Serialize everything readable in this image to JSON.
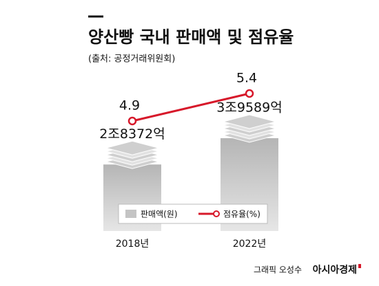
{
  "chart_data": {
    "type": "combo",
    "title": "양산빵 국내 판매액 및 점유율",
    "subtitle": "(출처: 공정거래위원회)",
    "categories": [
      "2018년",
      "2022년"
    ],
    "series": [
      {
        "name": "판매액(원)",
        "type": "bar",
        "color": "#c4c4c4",
        "values": [
          2837200000000,
          3958900000000
        ],
        "value_labels": [
          "2조8372억",
          "3조9589억"
        ]
      },
      {
        "name": "점유율(%)",
        "type": "line",
        "color": "#d7182a",
        "values": [
          4.9,
          5.4
        ]
      }
    ],
    "credit": "그래픽 오성수",
    "source": "아시아경제"
  }
}
